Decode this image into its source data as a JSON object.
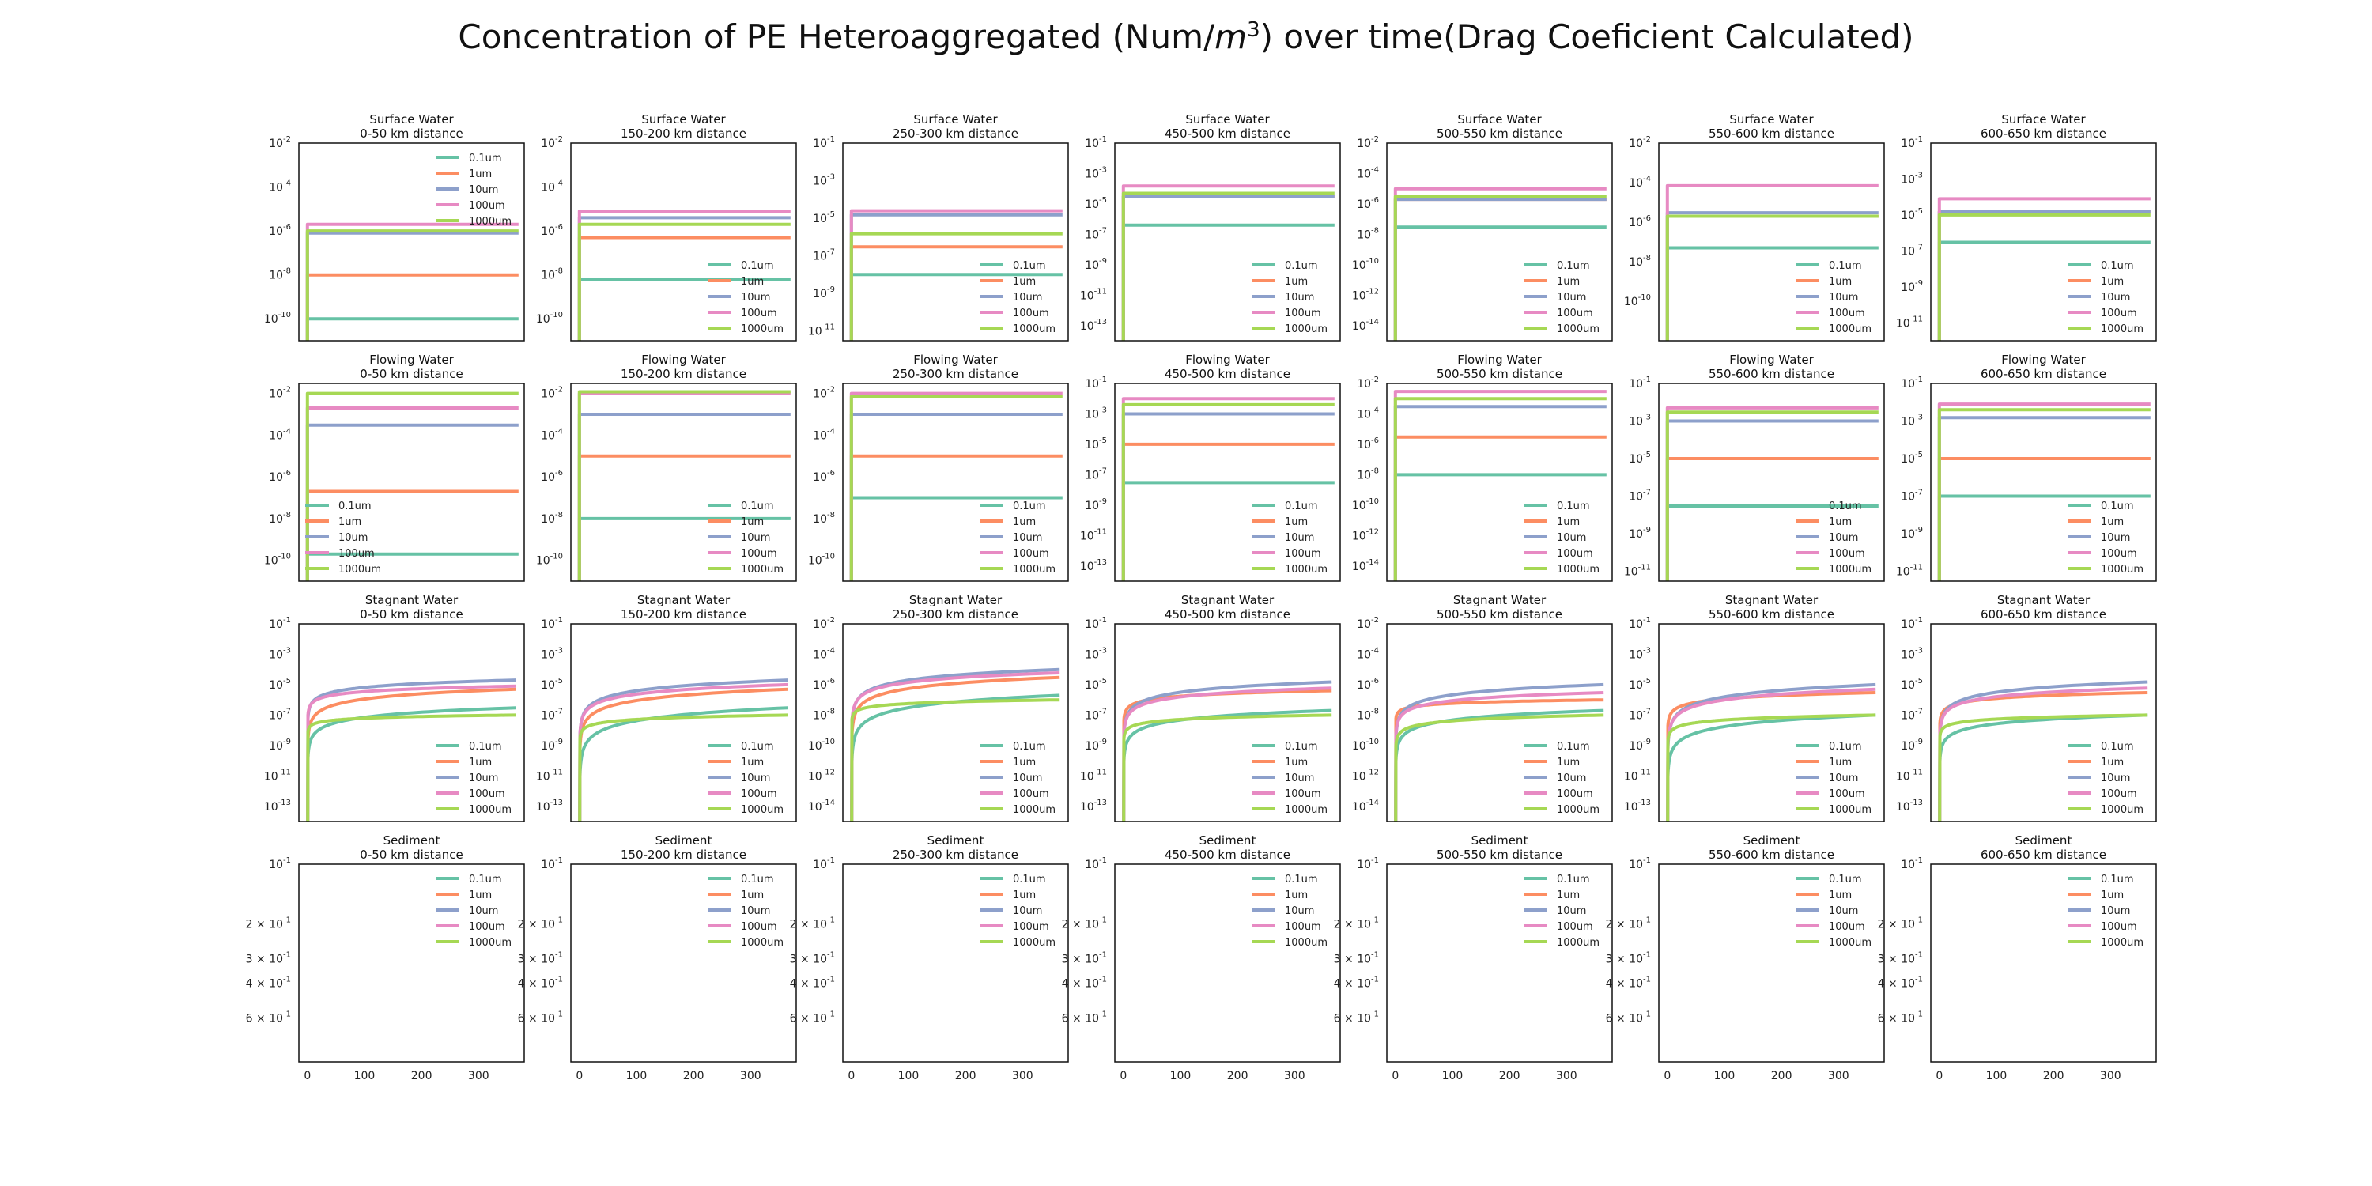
{
  "suptitle": {
    "prefix": "Concentration of PE Heteroaggregated (Num/",
    "unit_base": "m",
    "unit_exp": "3",
    "suffix": ") over time(Drag Coeficient Calculated)"
  },
  "colors": {
    "0.1um": "#66c2a5",
    "1um": "#fc8d62",
    "10um": "#8da0cb",
    "100um": "#e78ac3",
    "1000um": "#a6d854"
  },
  "chart_data": {
    "type": "line",
    "xscale": "linear",
    "yscale": "log",
    "xlim": [
      -15,
      380
    ],
    "xticks": [
      "0",
      "100",
      "200",
      "300"
    ],
    "series_names": [
      "0.1um",
      "1um",
      "10um",
      "100um",
      "1000um"
    ],
    "rows": [
      {
        "compartment": "Surface Water",
        "kind": "step",
        "panels": [
          {
            "title": "Surface Water\n0-50 km distance",
            "ylim": [
              1e-11,
              0.01
            ],
            "ytick_exp": [
              -2,
              -4,
              -6,
              -8,
              -10
            ],
            "legend": "upper right",
            "plateaus": {
              "0.1um": 1e-10,
              "1um": 1e-08,
              "10um": 8e-07,
              "100um": 2e-06,
              "1000um": 1e-06
            }
          },
          {
            "title": "Surface Water\n150-200 km distance",
            "ylim": [
              1e-11,
              0.01
            ],
            "ytick_exp": [
              -2,
              -4,
              -6,
              -8,
              -10
            ],
            "legend": "lower right",
            "plateaus": {
              "0.1um": 6e-09,
              "1um": 5e-07,
              "10um": 4e-06,
              "100um": 8e-06,
              "1000um": 2e-06
            }
          },
          {
            "title": "Surface Water\n250-300 km distance",
            "ylim": [
              3e-12,
              0.1
            ],
            "ytick_exp": [
              -1,
              -3,
              -5,
              -7,
              -9,
              -11
            ],
            "legend": "lower right",
            "plateaus": {
              "0.1um": 1e-08,
              "1um": 3e-07,
              "10um": 1.5e-05,
              "100um": 2.5e-05,
              "1000um": 1.5e-06
            }
          },
          {
            "title": "Surface Water\n450-500 km distance",
            "ylim": [
              1e-14,
              0.1
            ],
            "ytick_exp": [
              -1,
              -3,
              -5,
              -7,
              -9,
              -11,
              -13
            ],
            "legend": "lower right",
            "plateaus": {
              "0.1um": 4e-07,
              "1um": 3e-05,
              "10um": 3e-05,
              "100um": 0.00015,
              "1000um": 5e-05
            }
          },
          {
            "title": "Surface Water\n500-550 km distance",
            "ylim": [
              1e-15,
              0.01
            ],
            "ytick_exp": [
              -2,
              -4,
              -6,
              -8,
              -10,
              -12,
              -14
            ],
            "legend": "lower right",
            "plateaus": {
              "0.1um": 3e-08,
              "1um": 2e-06,
              "10um": 2e-06,
              "100um": 1e-05,
              "1000um": 3e-06
            }
          },
          {
            "title": "Surface Water\n550-600 km distance",
            "ylim": [
              1e-12,
              0.01
            ],
            "ytick_exp": [
              -2,
              -4,
              -6,
              -8,
              -10
            ],
            "legend": "lower right",
            "plateaus": {
              "0.1um": 5e-08,
              "1um": 2e-06,
              "10um": 3e-06,
              "100um": 7e-05,
              "1000um": 2e-06
            }
          },
          {
            "title": "Surface Water\n600-650 km distance",
            "ylim": [
              1e-12,
              0.1
            ],
            "ytick_exp": [
              -1,
              -3,
              -5,
              -7,
              -9,
              -11
            ],
            "legend": "lower right",
            "plateaus": {
              "0.1um": 3e-07,
              "1um": 1.5e-05,
              "10um": 1.5e-05,
              "100um": 8e-05,
              "1000um": 1e-05
            }
          }
        ]
      },
      {
        "compartment": "Flowing Water",
        "kind": "step",
        "panels": [
          {
            "title": "Flowing Water\n0-50 km distance",
            "ylim": [
              1e-11,
              0.03
            ],
            "ytick_exp": [
              -2,
              -4,
              -6,
              -8,
              -10
            ],
            "legend": "lower left",
            "plateaus": {
              "0.1um": 2e-10,
              "1um": 2e-07,
              "10um": 0.0003,
              "100um": 0.002,
              "1000um": 0.01
            }
          },
          {
            "title": "Flowing Water\n150-200 km distance",
            "ylim": [
              1e-11,
              0.03
            ],
            "ytick_exp": [
              -2,
              -4,
              -6,
              -8,
              -10
            ],
            "legend": "lower right",
            "plateaus": {
              "0.1um": 1e-08,
              "1um": 1e-05,
              "10um": 0.001,
              "100um": 0.01,
              "1000um": 0.012
            }
          },
          {
            "title": "Flowing Water\n250-300 km distance",
            "ylim": [
              1e-11,
              0.03
            ],
            "ytick_exp": [
              -2,
              -4,
              -6,
              -8,
              -10
            ],
            "legend": "lower right",
            "plateaus": {
              "0.1um": 1e-07,
              "1um": 1e-05,
              "10um": 0.001,
              "100um": 0.01,
              "1000um": 0.007
            }
          },
          {
            "title": "Flowing Water\n450-500 km distance",
            "ylim": [
              1e-14,
              0.1
            ],
            "ytick_exp": [
              -1,
              -3,
              -5,
              -7,
              -9,
              -11,
              -13
            ],
            "legend": "lower right",
            "plateaus": {
              "0.1um": 3e-08,
              "1um": 1e-05,
              "10um": 0.001,
              "100um": 0.01,
              "1000um": 0.004
            }
          },
          {
            "title": "Flowing Water\n500-550 km distance",
            "ylim": [
              1e-15,
              0.01
            ],
            "ytick_exp": [
              -2,
              -4,
              -6,
              -8,
              -10,
              -12,
              -14
            ],
            "legend": "lower right",
            "plateaus": {
              "0.1um": 1e-08,
              "1um": 3e-06,
              "10um": 0.0003,
              "100um": 0.003,
              "1000um": 0.001
            }
          },
          {
            "title": "Flowing Water\n550-600 km distance",
            "ylim": [
              3e-12,
              0.1
            ],
            "ytick_exp": [
              -1,
              -3,
              -5,
              -7,
              -9,
              -11
            ],
            "legend": "lower right",
            "plateaus": {
              "0.1um": 3e-08,
              "1um": 1e-05,
              "10um": 0.001,
              "100um": 0.005,
              "1000um": 0.003
            }
          },
          {
            "title": "Flowing Water\n600-650 km distance",
            "ylim": [
              3e-12,
              0.1
            ],
            "ytick_exp": [
              -1,
              -3,
              -5,
              -7,
              -9,
              -11
            ],
            "legend": "lower right",
            "plateaus": {
              "0.1um": 1e-07,
              "1um": 1e-05,
              "10um": 0.0015,
              "100um": 0.008,
              "1000um": 0.004
            }
          }
        ]
      },
      {
        "compartment": "Stagnant Water",
        "kind": "growth",
        "panels": [
          {
            "title": "Stagnant Water\n0-50 km distance",
            "ylim": [
              1e-14,
              0.1
            ],
            "ytick_exp": [
              -1,
              -3,
              -5,
              -7,
              -9,
              -11,
              -13
            ],
            "legend": "lower right",
            "curves": {
              "0.1um": {
                "end": 3e-07,
                "knee": 1.5e-10
              },
              "1um": {
                "end": 5e-06,
                "knee": 2e-09
              },
              "10um": {
                "end": 2e-05,
                "knee": 6e-08
              },
              "100um": {
                "end": 8e-06,
                "knee": 1e-07
              },
              "1000um": {
                "end": 1e-07,
                "knee": 8e-09
              }
            }
          },
          {
            "title": "Stagnant Water\n150-200 km distance",
            "ylim": [
              1e-14,
              0.1
            ],
            "ytick_exp": [
              -1,
              -3,
              -5,
              -7,
              -9,
              -11,
              -13
            ],
            "legend": "lower right",
            "curves": {
              "0.1um": {
                "end": 3e-07,
                "knee": 1e-11
              },
              "1um": {
                "end": 5e-06,
                "knee": 6e-10
              },
              "10um": {
                "end": 2e-05,
                "knee": 4e-09
              },
              "100um": {
                "end": 1e-05,
                "knee": 5e-09
              },
              "1000um": {
                "end": 1e-07,
                "knee": 3e-09
              }
            }
          },
          {
            "title": "Stagnant Water\n250-300 km distance",
            "ylim": [
              1e-15,
              0.01
            ],
            "ytick_exp": [
              -2,
              -4,
              -6,
              -8,
              -10,
              -12,
              -14
            ],
            "legend": "lower right",
            "curves": {
              "0.1um": {
                "end": 2e-07,
                "knee": 1e-11
              },
              "1um": {
                "end": 3e-06,
                "knee": 4e-10
              },
              "10um": {
                "end": 1e-05,
                "knee": 2e-09
              },
              "100um": {
                "end": 6e-06,
                "knee": 3e-09
              },
              "1000um": {
                "end": 1e-07,
                "knee": 5e-09
              }
            }
          },
          {
            "title": "Stagnant Water\n450-500 km distance",
            "ylim": [
              1e-14,
              0.1
            ],
            "ytick_exp": [
              -1,
              -3,
              -5,
              -7,
              -9,
              -11,
              -13
            ],
            "legend": "lower right",
            "curves": {
              "0.1um": {
                "end": 2e-07,
                "knee": 1e-10
              },
              "1um": {
                "end": 4e-06,
                "knee": 5e-08
              },
              "10um": {
                "end": 1.5e-05,
                "knee": 4e-09
              },
              "100um": {
                "end": 6e-06,
                "knee": 5e-09
              },
              "1000um": {
                "end": 1e-07,
                "knee": 3e-09
              }
            }
          },
          {
            "title": "Stagnant Water\n500-550 km distance",
            "ylim": [
              1e-15,
              0.01
            ],
            "ytick_exp": [
              -2,
              -4,
              -6,
              -8,
              -10,
              -12,
              -14
            ],
            "legend": "lower right",
            "curves": {
              "0.1um": {
                "end": 2e-08,
                "knee": 1e-11
              },
              "1um": {
                "end": 1e-07,
                "knee": 6e-09
              },
              "10um": {
                "end": 1e-06,
                "knee": 3e-10
              },
              "100um": {
                "end": 3e-07,
                "knee": 5e-10
              },
              "1000um": {
                "end": 1e-08,
                "knee": 1e-10
              }
            }
          },
          {
            "title": "Stagnant Water\n550-600 km distance",
            "ylim": [
              1e-14,
              0.1
            ],
            "ytick_exp": [
              -1,
              -3,
              -5,
              -7,
              -9,
              -11,
              -13
            ],
            "legend": "lower right",
            "curves": {
              "0.1um": {
                "end": 1e-07,
                "knee": 1e-11
              },
              "1um": {
                "end": 3e-06,
                "knee": 2e-08
              },
              "10um": {
                "end": 1e-05,
                "knee": 6e-10
              },
              "100um": {
                "end": 5e-06,
                "knee": 1e-09
              },
              "1000um": {
                "end": 1e-07,
                "knee": 2e-09
              }
            }
          },
          {
            "title": "Stagnant Water\n600-650 km distance",
            "ylim": [
              1e-14,
              0.1
            ],
            "ytick_exp": [
              -1,
              -3,
              -5,
              -7,
              -9,
              -11,
              -13
            ],
            "legend": "lower right",
            "curves": {
              "0.1um": {
                "end": 1e-07,
                "knee": 1e-10
              },
              "1um": {
                "end": 3e-06,
                "knee": 3e-08
              },
              "10um": {
                "end": 1.5e-05,
                "knee": 4e-09
              },
              "100um": {
                "end": 6e-06,
                "knee": 6e-09
              },
              "1000um": {
                "end": 1e-07,
                "knee": 4e-09
              }
            }
          }
        ]
      },
      {
        "compartment": "Sediment",
        "kind": "empty",
        "panels": [
          {
            "title": "Sediment\n0-50 km distance"
          },
          {
            "title": "Sediment\n150-200 km distance"
          },
          {
            "title": "Sediment\n250-300 km distance"
          },
          {
            "title": "Sediment\n450-500 km distance"
          },
          {
            "title": "Sediment\n500-550 km distance"
          },
          {
            "title": "Sediment\n550-600 km distance"
          },
          {
            "title": "Sediment\n600-650 km distance"
          }
        ],
        "ytick_labels": [
          {
            "mant": "",
            "exp": "-1",
            "v": 0.1
          },
          {
            "mant": "2 × ",
            "exp": "-1",
            "v": 0.2
          },
          {
            "mant": "3 × ",
            "exp": "-1",
            "v": 0.3
          },
          {
            "mant": "4 × ",
            "exp": "-1",
            "v": 0.4
          },
          {
            "mant": "6 × ",
            "exp": "-1",
            "v": 0.6
          }
        ],
        "ylim": [
          0.1,
          1.0
        ],
        "legend": "upper right"
      }
    ]
  }
}
